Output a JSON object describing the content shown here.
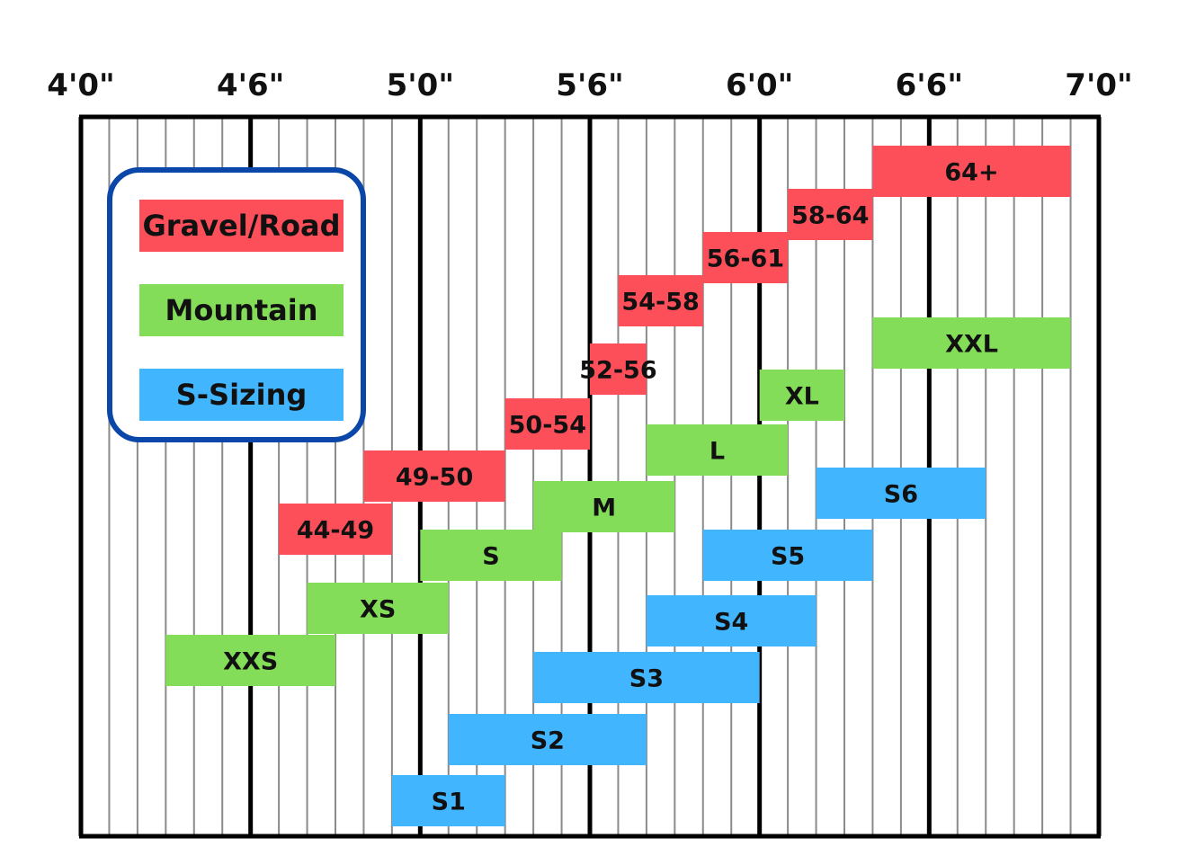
{
  "chart_data": {
    "type": "bar",
    "orientation": "horizontal-range",
    "x_unit": "rider height",
    "xlim": [
      "4'0\"",
      "7'0\""
    ],
    "x_ticks": [
      "4'0\"",
      "4'6\"",
      "5'0\"",
      "5'6\"",
      "6'0\"",
      "6'6\"",
      "7'0\""
    ],
    "grid": true,
    "legend_placement": "left",
    "legend": [
      {
        "name": "Gravel/Road",
        "color": "#fc4f59"
      },
      {
        "name": "Mountain",
        "color": "#84dd58"
      },
      {
        "name": "S-Sizing",
        "color": "#41b5fd"
      }
    ],
    "series": [
      {
        "name": "Gravel/Road",
        "color": "#fc4f59",
        "bars": [
          {
            "label": "44-49",
            "start_in": 55,
            "end_in": 59
          },
          {
            "label": "49-50",
            "start_in": 58,
            "end_in": 63
          },
          {
            "label": "50-54",
            "start_in": 63,
            "end_in": 66
          },
          {
            "label": "52-56",
            "start_in": 66,
            "end_in": 68
          },
          {
            "label": "54-58",
            "start_in": 67,
            "end_in": 70
          },
          {
            "label": "56-61",
            "start_in": 70,
            "end_in": 73
          },
          {
            "label": "58-64",
            "start_in": 73,
            "end_in": 76
          },
          {
            "label": "64+",
            "start_in": 76,
            "end_in": 83
          }
        ]
      },
      {
        "name": "Mountain",
        "color": "#84dd58",
        "bars": [
          {
            "label": "XXS",
            "start_in": 51,
            "end_in": 57
          },
          {
            "label": "XS",
            "start_in": 56,
            "end_in": 61
          },
          {
            "label": "S",
            "start_in": 60,
            "end_in": 65
          },
          {
            "label": "M",
            "start_in": 64,
            "end_in": 69
          },
          {
            "label": "L",
            "start_in": 68,
            "end_in": 73
          },
          {
            "label": "XL",
            "start_in": 72,
            "end_in": 75
          },
          {
            "label": "XXL",
            "start_in": 76,
            "end_in": 83
          }
        ]
      },
      {
        "name": "S-Sizing",
        "color": "#41b5fd",
        "bars": [
          {
            "label": "S1",
            "start_in": 59,
            "end_in": 63
          },
          {
            "label": "S2",
            "start_in": 61,
            "end_in": 68
          },
          {
            "label": "S3",
            "start_in": 64,
            "end_in": 72
          },
          {
            "label": "S4",
            "start_in": 68,
            "end_in": 74
          },
          {
            "label": "S5",
            "start_in": 70,
            "end_in": 76
          },
          {
            "label": "S6",
            "start_in": 74,
            "end_in": 80
          }
        ]
      }
    ]
  }
}
